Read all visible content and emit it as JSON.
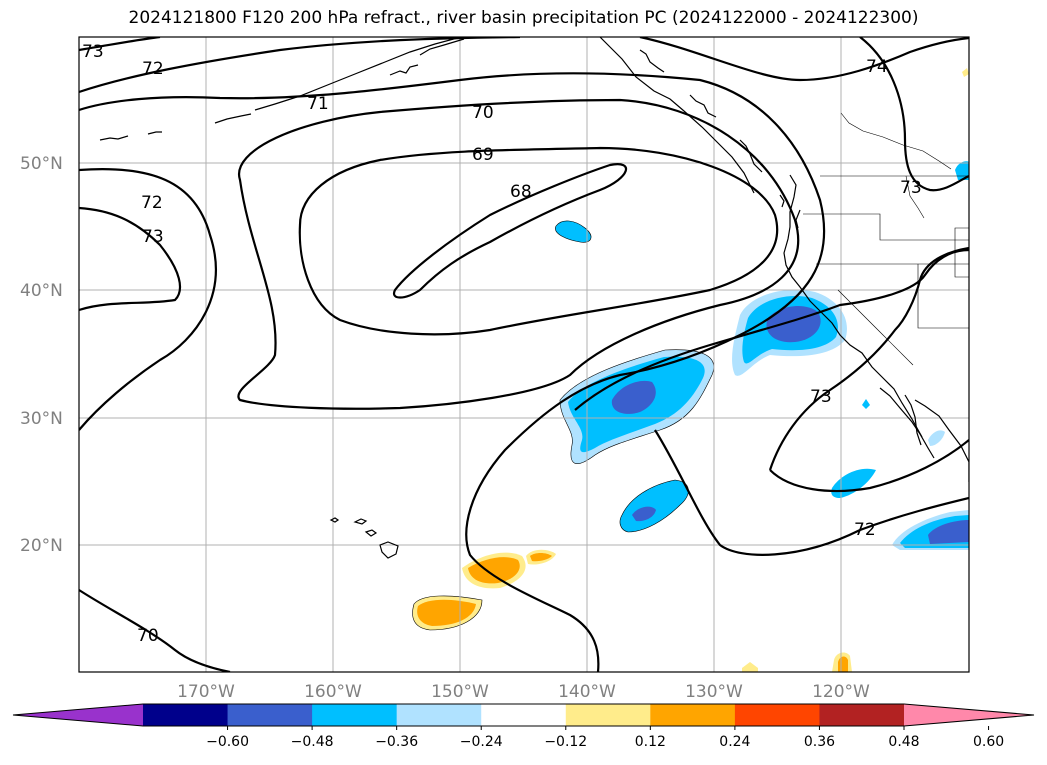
{
  "title": "2024121800 F120 200 hPa refract., river basin precipitation PC (2024122000 - 2024122300)",
  "map": {
    "lat_labels": [
      "50°N",
      "40°N",
      "30°N",
      "20°N"
    ],
    "lon_labels": [
      "170°W",
      "160°W",
      "150°W",
      "140°W",
      "130°W",
      "120°W"
    ],
    "contour_labels": [
      "73",
      "72",
      "71",
      "70",
      "69",
      "68",
      "72",
      "73",
      "74",
      "73",
      "73",
      "72",
      "70"
    ]
  },
  "colorbar": {
    "ticks": [
      "−0.60",
      "−0.48",
      "−0.36",
      "−0.24",
      "−0.12",
      "0.12",
      "0.24",
      "0.36",
      "0.48",
      "0.60"
    ],
    "colors": [
      "#9932cc",
      "#00008b",
      "#3a5fcd",
      "#00bfff",
      "#b0e2ff",
      "#ffffff",
      "#ffec8b",
      "#ffa500",
      "#ff4500",
      "#b22222",
      "#ff88aa"
    ]
  }
}
